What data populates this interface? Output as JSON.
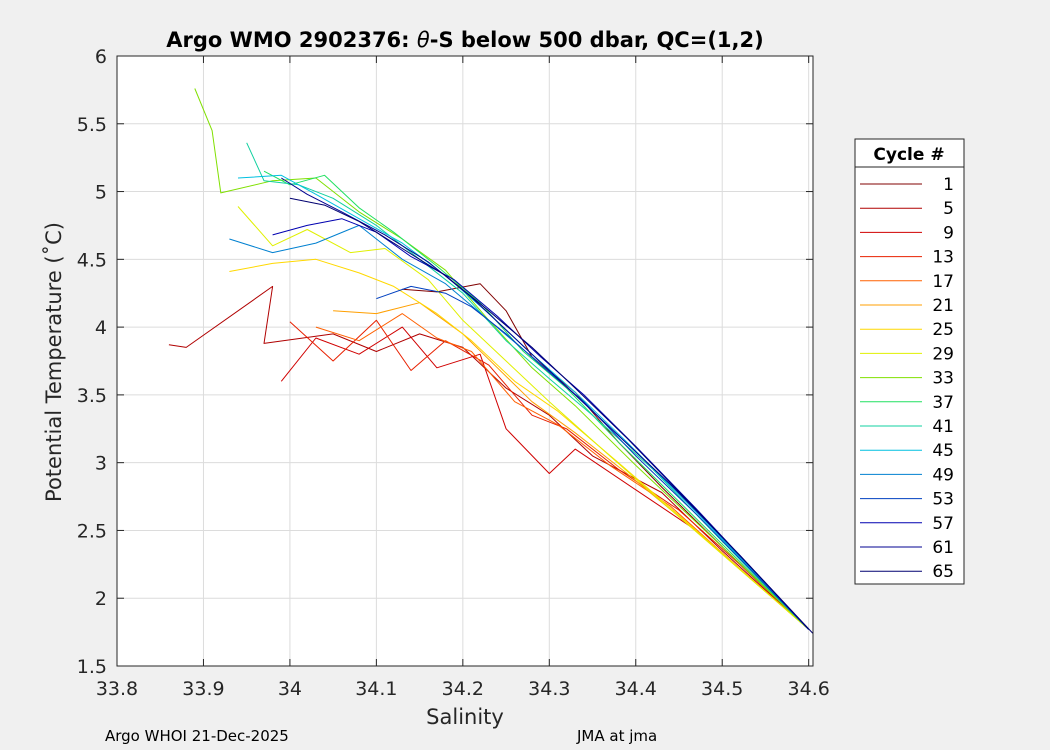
{
  "chart_data": {
    "type": "line",
    "title_parts": [
      "Argo WMO 2902376: ",
      "θ",
      "-S below 500 dbar,  QC=(1,2)"
    ],
    "xlabel": "Salinity",
    "ylabel": "Potential Temperature (˚C)",
    "xlim": [
      33.8,
      34.605
    ],
    "ylim": [
      1.5,
      6
    ],
    "xticks": [
      33.8,
      33.9,
      34.0,
      34.1,
      34.2,
      34.3,
      34.4,
      34.5,
      34.6
    ],
    "xtick_labels": [
      "33.8",
      "33.9",
      "34",
      "34.1",
      "34.2",
      "34.3",
      "34.4",
      "34.5",
      "34.6"
    ],
    "yticks": [
      1.5,
      2,
      2.5,
      3,
      3.5,
      4,
      4.5,
      5,
      5.5,
      6
    ],
    "ytick_labels": [
      "1.5",
      "2",
      "2.5",
      "3",
      "3.5",
      "4",
      "4.5",
      "5",
      "5.5",
      "6"
    ],
    "grid": true,
    "legend_title": "Cycle #",
    "legend_position": "outside-right",
    "series": [
      {
        "name": "1",
        "color": "#800000",
        "points": [
          [
            34.13,
            4.28
          ],
          [
            34.17,
            4.26
          ],
          [
            34.22,
            4.32
          ],
          [
            34.25,
            4.12
          ],
          [
            34.28,
            3.78
          ],
          [
            34.33,
            3.52
          ],
          [
            34.38,
            3.15
          ],
          [
            34.43,
            2.82
          ],
          [
            34.5,
            2.38
          ],
          [
            34.6,
            1.77
          ]
        ]
      },
      {
        "name": "5",
        "color": "#b00000",
        "points": [
          [
            33.86,
            3.87
          ],
          [
            33.88,
            3.85
          ],
          [
            33.98,
            4.3
          ],
          [
            33.97,
            3.88
          ],
          [
            34.05,
            3.95
          ],
          [
            34.1,
            3.82
          ],
          [
            34.15,
            3.95
          ],
          [
            34.2,
            3.85
          ],
          [
            34.25,
            3.55
          ],
          [
            34.3,
            3.35
          ],
          [
            34.35,
            3.05
          ],
          [
            34.43,
            2.78
          ],
          [
            34.5,
            2.35
          ],
          [
            34.6,
            1.77
          ]
        ]
      },
      {
        "name": "9",
        "color": "#d00000",
        "points": [
          [
            33.99,
            3.6
          ],
          [
            34.03,
            3.92
          ],
          [
            34.08,
            3.8
          ],
          [
            34.13,
            4.0
          ],
          [
            34.17,
            3.7
          ],
          [
            34.22,
            3.8
          ],
          [
            34.25,
            3.25
          ],
          [
            34.3,
            2.92
          ],
          [
            34.33,
            3.1
          ],
          [
            34.4,
            2.8
          ],
          [
            34.47,
            2.5
          ],
          [
            34.6,
            1.77
          ]
        ]
      },
      {
        "name": "13",
        "color": "#e82000",
        "points": [
          [
            34.0,
            4.04
          ],
          [
            34.05,
            3.75
          ],
          [
            34.1,
            4.05
          ],
          [
            34.14,
            3.68
          ],
          [
            34.18,
            3.9
          ],
          [
            34.23,
            3.72
          ],
          [
            34.28,
            3.35
          ],
          [
            34.32,
            3.25
          ],
          [
            34.38,
            2.95
          ],
          [
            34.45,
            2.65
          ],
          [
            34.52,
            2.25
          ],
          [
            34.6,
            1.77
          ]
        ]
      },
      {
        "name": "17",
        "color": "#ff6000",
        "points": [
          [
            34.03,
            4.0
          ],
          [
            34.08,
            3.9
          ],
          [
            34.13,
            4.1
          ],
          [
            34.17,
            3.92
          ],
          [
            34.21,
            3.82
          ],
          [
            34.26,
            3.45
          ],
          [
            34.31,
            3.28
          ],
          [
            34.37,
            2.98
          ],
          [
            34.44,
            2.68
          ],
          [
            34.52,
            2.22
          ],
          [
            34.6,
            1.77
          ]
        ]
      },
      {
        "name": "21",
        "color": "#ff9f00",
        "points": [
          [
            34.05,
            4.12
          ],
          [
            34.1,
            4.1
          ],
          [
            34.15,
            4.18
          ],
          [
            34.2,
            3.95
          ],
          [
            34.24,
            3.7
          ],
          [
            34.28,
            3.45
          ],
          [
            34.33,
            3.22
          ],
          [
            34.39,
            2.92
          ],
          [
            34.46,
            2.55
          ],
          [
            34.6,
            1.77
          ]
        ]
      },
      {
        "name": "25",
        "color": "#ffd800",
        "points": [
          [
            33.93,
            4.41
          ],
          [
            33.98,
            4.47
          ],
          [
            34.03,
            4.5
          ],
          [
            34.08,
            4.4
          ],
          [
            34.12,
            4.3
          ],
          [
            34.17,
            4.1
          ],
          [
            34.21,
            3.9
          ],
          [
            34.26,
            3.6
          ],
          [
            34.31,
            3.38
          ],
          [
            34.38,
            3.0
          ],
          [
            34.47,
            2.5
          ],
          [
            34.6,
            1.77
          ]
        ]
      },
      {
        "name": "29",
        "color": "#e0f000",
        "points": [
          [
            33.94,
            4.89
          ],
          [
            33.98,
            4.6
          ],
          [
            34.02,
            4.72
          ],
          [
            34.07,
            4.55
          ],
          [
            34.11,
            4.58
          ],
          [
            34.16,
            4.35
          ],
          [
            34.2,
            4.05
          ],
          [
            34.25,
            3.75
          ],
          [
            34.3,
            3.45
          ],
          [
            34.37,
            3.05
          ],
          [
            34.45,
            2.6
          ],
          [
            34.6,
            1.77
          ]
        ]
      },
      {
        "name": "33",
        "color": "#80e000",
        "points": [
          [
            33.89,
            5.76
          ],
          [
            33.91,
            5.45
          ],
          [
            33.92,
            4.99
          ],
          [
            33.98,
            5.08
          ],
          [
            34.03,
            5.1
          ],
          [
            34.08,
            4.85
          ],
          [
            34.13,
            4.65
          ],
          [
            34.18,
            4.42
          ],
          [
            34.23,
            4.05
          ],
          [
            34.28,
            3.7
          ],
          [
            34.33,
            3.42
          ],
          [
            34.4,
            2.98
          ],
          [
            34.48,
            2.5
          ],
          [
            34.6,
            1.77
          ]
        ]
      },
      {
        "name": "37",
        "color": "#20e060",
        "points": [
          [
            33.97,
            5.15
          ],
          [
            34.0,
            5.05
          ],
          [
            34.04,
            5.12
          ],
          [
            34.08,
            4.88
          ],
          [
            34.12,
            4.7
          ],
          [
            34.17,
            4.45
          ],
          [
            34.22,
            4.18
          ],
          [
            34.27,
            3.82
          ],
          [
            34.32,
            3.55
          ],
          [
            34.38,
            3.15
          ],
          [
            34.46,
            2.65
          ],
          [
            34.6,
            1.77
          ]
        ]
      },
      {
        "name": "41",
        "color": "#10d0a0",
        "points": [
          [
            33.95,
            5.36
          ],
          [
            33.97,
            5.08
          ],
          [
            34.01,
            5.05
          ],
          [
            34.05,
            4.95
          ],
          [
            34.1,
            4.75
          ],
          [
            34.15,
            4.5
          ],
          [
            34.2,
            4.25
          ],
          [
            34.25,
            3.9
          ],
          [
            34.3,
            3.62
          ],
          [
            34.35,
            3.35
          ],
          [
            34.42,
            2.95
          ],
          [
            34.5,
            2.42
          ],
          [
            34.6,
            1.77
          ]
        ]
      },
      {
        "name": "45",
        "color": "#00c0e0",
        "points": [
          [
            33.94,
            5.1
          ],
          [
            33.99,
            5.12
          ],
          [
            34.03,
            4.98
          ],
          [
            34.08,
            4.8
          ],
          [
            34.13,
            4.62
          ],
          [
            34.18,
            4.38
          ],
          [
            34.23,
            4.1
          ],
          [
            34.28,
            3.8
          ],
          [
            34.33,
            3.52
          ],
          [
            34.39,
            3.15
          ],
          [
            34.46,
            2.7
          ],
          [
            34.6,
            1.77
          ]
        ]
      },
      {
        "name": "49",
        "color": "#0080d0",
        "points": [
          [
            33.93,
            4.65
          ],
          [
            33.98,
            4.55
          ],
          [
            34.03,
            4.62
          ],
          [
            34.08,
            4.75
          ],
          [
            34.13,
            4.5
          ],
          [
            34.18,
            4.32
          ],
          [
            34.23,
            4.05
          ],
          [
            34.28,
            3.78
          ],
          [
            34.33,
            3.5
          ],
          [
            34.38,
            3.2
          ],
          [
            34.45,
            2.78
          ],
          [
            34.6,
            1.77
          ]
        ]
      },
      {
        "name": "53",
        "color": "#0040c0",
        "points": [
          [
            34.1,
            4.21
          ],
          [
            34.14,
            4.3
          ],
          [
            34.18,
            4.25
          ],
          [
            34.21,
            4.15
          ],
          [
            34.25,
            3.95
          ],
          [
            34.29,
            3.72
          ],
          [
            34.34,
            3.45
          ],
          [
            34.4,
            3.05
          ],
          [
            34.47,
            2.62
          ],
          [
            34.6,
            1.77
          ]
        ]
      },
      {
        "name": "57",
        "color": "#0000b0",
        "points": [
          [
            33.98,
            4.68
          ],
          [
            34.02,
            4.75
          ],
          [
            34.06,
            4.8
          ],
          [
            34.1,
            4.7
          ],
          [
            34.14,
            4.52
          ],
          [
            34.19,
            4.35
          ],
          [
            34.24,
            4.08
          ],
          [
            34.29,
            3.78
          ],
          [
            34.34,
            3.5
          ],
          [
            34.4,
            3.12
          ],
          [
            34.47,
            2.66
          ],
          [
            34.6,
            1.77
          ]
        ]
      },
      {
        "name": "61",
        "color": "#000090",
        "points": [
          [
            33.99,
            5.1
          ],
          [
            34.02,
            4.98
          ],
          [
            34.06,
            4.85
          ],
          [
            34.11,
            4.68
          ],
          [
            34.16,
            4.48
          ],
          [
            34.21,
            4.22
          ],
          [
            34.26,
            3.92
          ],
          [
            34.31,
            3.62
          ],
          [
            34.37,
            3.26
          ],
          [
            34.44,
            2.84
          ],
          [
            34.52,
            2.32
          ],
          [
            34.6,
            1.77
          ]
        ]
      },
      {
        "name": "65",
        "color": "#000070",
        "points": [
          [
            34.0,
            4.95
          ],
          [
            34.04,
            4.9
          ],
          [
            34.08,
            4.78
          ],
          [
            34.13,
            4.58
          ],
          [
            34.18,
            4.38
          ],
          [
            34.23,
            4.12
          ],
          [
            34.28,
            3.85
          ],
          [
            34.33,
            3.55
          ],
          [
            34.39,
            3.18
          ],
          [
            34.46,
            2.72
          ],
          [
            34.53,
            2.25
          ],
          [
            34.605,
            1.74
          ]
        ]
      }
    ]
  },
  "footer": {
    "left": "Argo WHOI 21-Dec-2025",
    "right": "JMA at jma"
  }
}
